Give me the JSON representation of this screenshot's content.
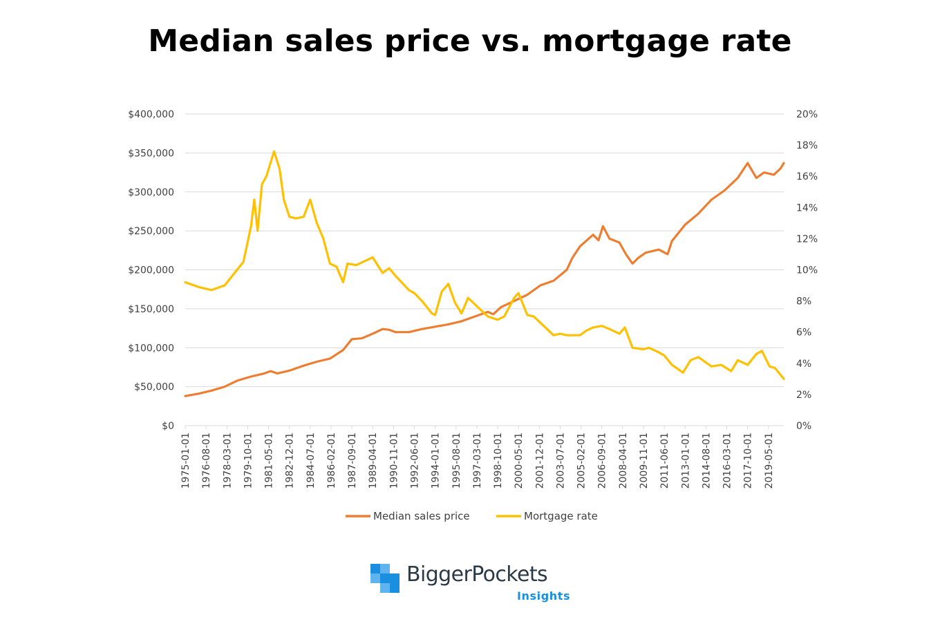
{
  "title": "Median sales price vs. mortgage rate",
  "colors": {
    "price": "#ed7d31",
    "rate": "#ffc000",
    "grid": "#d9d9d9",
    "axis_text": "#404040"
  },
  "chart_data": {
    "type": "line",
    "x_tick_labels": [
      "1975-01-01",
      "1976-08-01",
      "1978-03-01",
      "1979-10-01",
      "1981-05-01",
      "1982-12-01",
      "1984-07-01",
      "1986-02-01",
      "1987-09-01",
      "1989-04-01",
      "1990-11-01",
      "1992-06-01",
      "1994-01-01",
      "1995-08-01",
      "1997-03-01",
      "1998-10-01",
      "2000-05-01",
      "2001-12-01",
      "2003-07-01",
      "2005-02-01",
      "2006-09-01",
      "2008-04-01",
      "2009-11-01",
      "2011-06-01",
      "2013-01-01",
      "2014-08-01",
      "2016-03-01",
      "2017-10-01",
      "2019-05-01"
    ],
    "x_range": [
      "1975-01-01",
      "2020-07-01"
    ],
    "y_left": {
      "min": 0,
      "max": 400000,
      "step": 50000,
      "tick_labels": [
        "$0",
        "$50,000",
        "$100,000",
        "$150,000",
        "$200,000",
        "$250,000",
        "$300,000",
        "$350,000",
        "$400,000"
      ]
    },
    "y_right": {
      "min": 0,
      "max": 20,
      "step": 2,
      "tick_labels": [
        "0%",
        "2%",
        "4%",
        "6%",
        "8%",
        "10%",
        "12%",
        "14%",
        "16%",
        "18%",
        "20%"
      ]
    },
    "grid": true,
    "legend_position": "bottom",
    "series": [
      {
        "name": "Median sales price",
        "axis": "left",
        "points": [
          [
            "1975-01-01",
            38000
          ],
          [
            "1976-01-01",
            41000
          ],
          [
            "1977-01-01",
            45000
          ],
          [
            "1978-01-01",
            50000
          ],
          [
            "1979-01-01",
            58000
          ],
          [
            "1980-01-01",
            63000
          ],
          [
            "1981-01-01",
            67000
          ],
          [
            "1981-07-01",
            70000
          ],
          [
            "1982-01-01",
            67000
          ],
          [
            "1983-01-01",
            71000
          ],
          [
            "1984-01-01",
            77000
          ],
          [
            "1985-01-01",
            82000
          ],
          [
            "1986-01-01",
            86000
          ],
          [
            "1987-01-01",
            97000
          ],
          [
            "1987-09-01",
            111000
          ],
          [
            "1988-06-01",
            112000
          ],
          [
            "1989-04-01",
            118000
          ],
          [
            "1990-01-01",
            124000
          ],
          [
            "1990-07-01",
            123000
          ],
          [
            "1991-01-01",
            120000
          ],
          [
            "1992-01-01",
            120000
          ],
          [
            "1993-01-01",
            124000
          ],
          [
            "1994-01-01",
            127000
          ],
          [
            "1995-01-01",
            130000
          ],
          [
            "1996-01-01",
            134000
          ],
          [
            "1997-01-01",
            140000
          ],
          [
            "1998-01-01",
            146000
          ],
          [
            "1998-06-01",
            143000
          ],
          [
            "1999-01-01",
            152000
          ],
          [
            "2000-01-01",
            160000
          ],
          [
            "2001-01-01",
            168000
          ],
          [
            "2002-01-01",
            180000
          ],
          [
            "2003-01-01",
            186000
          ],
          [
            "2004-01-01",
            200000
          ],
          [
            "2004-06-01",
            215000
          ],
          [
            "2005-01-01",
            230000
          ],
          [
            "2006-01-01",
            245000
          ],
          [
            "2006-06-01",
            238000
          ],
          [
            "2006-10-01",
            256000
          ],
          [
            "2007-04-01",
            240000
          ],
          [
            "2008-01-01",
            235000
          ],
          [
            "2008-07-01",
            220000
          ],
          [
            "2009-01-01",
            208000
          ],
          [
            "2009-06-01",
            215000
          ],
          [
            "2010-01-01",
            222000
          ],
          [
            "2011-01-01",
            226000
          ],
          [
            "2011-09-01",
            220000
          ],
          [
            "2012-01-01",
            237000
          ],
          [
            "2013-01-01",
            258000
          ],
          [
            "2014-01-01",
            272000
          ],
          [
            "2015-01-01",
            290000
          ],
          [
            "2016-01-01",
            302000
          ],
          [
            "2017-01-01",
            318000
          ],
          [
            "2017-10-01",
            337000
          ],
          [
            "2018-06-01",
            318000
          ],
          [
            "2019-01-01",
            325000
          ],
          [
            "2019-10-01",
            322000
          ],
          [
            "2020-04-01",
            330000
          ],
          [
            "2020-07-01",
            337000
          ]
        ]
      },
      {
        "name": "Mortgage rate",
        "axis": "right",
        "points": [
          [
            "1975-01-01",
            9.2
          ],
          [
            "1976-01-01",
            8.9
          ],
          [
            "1977-01-01",
            8.7
          ],
          [
            "1978-01-01",
            9.0
          ],
          [
            "1978-10-01",
            9.8
          ],
          [
            "1979-06-01",
            10.5
          ],
          [
            "1980-01-01",
            12.8
          ],
          [
            "1980-04-01",
            14.5
          ],
          [
            "1980-07-01",
            12.5
          ],
          [
            "1980-11-01",
            15.5
          ],
          [
            "1981-03-01",
            16.0
          ],
          [
            "1981-10-01",
            17.6
          ],
          [
            "1982-03-01",
            16.5
          ],
          [
            "1982-07-01",
            14.5
          ],
          [
            "1982-12-01",
            13.4
          ],
          [
            "1983-06-01",
            13.3
          ],
          [
            "1984-01-01",
            13.4
          ],
          [
            "1984-07-01",
            14.5
          ],
          [
            "1985-01-01",
            13.0
          ],
          [
            "1985-07-01",
            12.0
          ],
          [
            "1986-01-01",
            10.4
          ],
          [
            "1986-07-01",
            10.2
          ],
          [
            "1987-01-01",
            9.2
          ],
          [
            "1987-05-01",
            10.4
          ],
          [
            "1988-01-01",
            10.3
          ],
          [
            "1988-07-01",
            10.5
          ],
          [
            "1989-04-01",
            10.8
          ],
          [
            "1990-01-01",
            9.8
          ],
          [
            "1990-07-01",
            10.1
          ],
          [
            "1991-01-01",
            9.6
          ],
          [
            "1992-01-01",
            8.7
          ],
          [
            "1992-06-01",
            8.5
          ],
          [
            "1993-01-01",
            8.0
          ],
          [
            "1993-10-01",
            7.2
          ],
          [
            "1994-01-01",
            7.1
          ],
          [
            "1994-07-01",
            8.6
          ],
          [
            "1995-01-01",
            9.1
          ],
          [
            "1995-07-01",
            7.9
          ],
          [
            "1996-01-01",
            7.2
          ],
          [
            "1996-07-01",
            8.2
          ],
          [
            "1997-01-01",
            7.8
          ],
          [
            "1997-07-01",
            7.4
          ],
          [
            "1998-01-01",
            7.0
          ],
          [
            "1998-10-01",
            6.8
          ],
          [
            "1999-04-01",
            7.0
          ],
          [
            "2000-01-01",
            8.2
          ],
          [
            "2000-05-01",
            8.5
          ],
          [
            "2001-01-01",
            7.1
          ],
          [
            "2001-07-01",
            7.0
          ],
          [
            "2002-01-01",
            6.6
          ],
          [
            "2003-01-01",
            5.8
          ],
          [
            "2003-07-01",
            5.9
          ],
          [
            "2004-01-01",
            5.8
          ],
          [
            "2005-01-01",
            5.8
          ],
          [
            "2005-07-01",
            6.1
          ],
          [
            "2006-01-01",
            6.3
          ],
          [
            "2006-09-01",
            6.4
          ],
          [
            "2007-04-01",
            6.2
          ],
          [
            "2008-01-01",
            5.9
          ],
          [
            "2008-06-01",
            6.3
          ],
          [
            "2009-01-01",
            5.0
          ],
          [
            "2009-11-01",
            4.9
          ],
          [
            "2010-04-01",
            5.0
          ],
          [
            "2011-01-01",
            4.7
          ],
          [
            "2011-06-01",
            4.5
          ],
          [
            "2012-01-01",
            3.9
          ],
          [
            "2012-11-01",
            3.4
          ],
          [
            "2013-06-01",
            4.2
          ],
          [
            "2014-01-01",
            4.4
          ],
          [
            "2015-01-01",
            3.8
          ],
          [
            "2015-10-01",
            3.9
          ],
          [
            "2016-07-01",
            3.5
          ],
          [
            "2017-01-01",
            4.2
          ],
          [
            "2017-10-01",
            3.9
          ],
          [
            "2018-06-01",
            4.6
          ],
          [
            "2018-11-01",
            4.8
          ],
          [
            "2019-06-01",
            3.8
          ],
          [
            "2019-11-01",
            3.7
          ],
          [
            "2020-07-01",
            3.0
          ]
        ]
      }
    ]
  },
  "logo": {
    "name": "BiggerPockets",
    "sub": "Insights"
  }
}
